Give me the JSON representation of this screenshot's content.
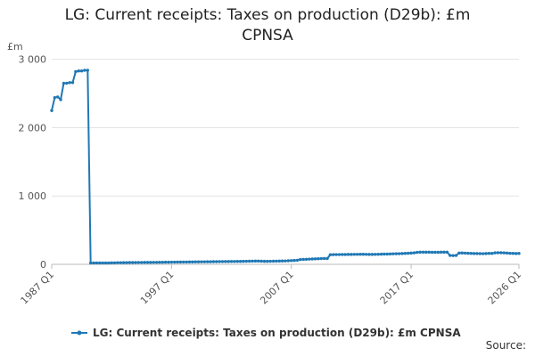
{
  "chart_data": {
    "type": "line",
    "title": "LG: Current receipts: Taxes on production (D29b): £m CPNSA",
    "y_label": "£m",
    "source": "Source:",
    "categories": [
      "1987 Q1",
      null,
      null,
      null,
      null,
      null,
      null,
      null,
      null,
      null,
      null,
      null,
      null,
      null,
      null,
      null,
      null,
      null,
      null,
      null,
      null,
      null,
      null,
      null,
      null,
      null,
      null,
      null,
      null,
      null,
      null,
      null,
      null,
      null,
      null,
      null,
      null,
      null,
      null,
      null,
      "1997 Q1",
      null,
      null,
      null,
      null,
      null,
      null,
      null,
      null,
      null,
      null,
      null,
      null,
      null,
      null,
      null,
      null,
      null,
      null,
      null,
      null,
      null,
      null,
      null,
      null,
      null,
      null,
      null,
      null,
      null,
      null,
      null,
      null,
      null,
      null,
      null,
      null,
      null,
      null,
      null,
      "2007 Q1",
      null,
      null,
      null,
      null,
      null,
      null,
      null,
      null,
      null,
      null,
      null,
      null,
      null,
      null,
      null,
      null,
      null,
      null,
      null,
      null,
      null,
      null,
      null,
      null,
      null,
      null,
      null,
      null,
      null,
      null,
      null,
      null,
      null,
      null,
      null,
      null,
      null,
      null,
      null,
      "2017 Q1",
      null,
      null,
      null,
      null,
      null,
      null,
      null,
      null,
      null,
      null,
      null,
      null,
      null,
      null,
      null,
      null,
      null,
      null,
      null,
      null,
      null,
      null,
      null,
      null,
      null,
      null,
      null,
      null,
      null,
      null,
      null,
      null,
      null,
      null,
      null,
      "2026 Q1"
    ],
    "series": [
      {
        "name": "LG: Current receipts: Taxes on production (D29b): £m CPNSA",
        "color": "#2078b4",
        "values": [
          2250,
          2440,
          2450,
          2410,
          2650,
          2650,
          2660,
          2660,
          2820,
          2830,
          2830,
          2840,
          2840,
          20,
          20,
          20,
          20,
          20,
          20,
          20,
          22,
          22,
          24,
          24,
          25,
          25,
          26,
          26,
          26,
          27,
          27,
          28,
          28,
          28,
          29,
          29,
          30,
          30,
          31,
          31,
          32,
          32,
          33,
          33,
          34,
          34,
          35,
          35,
          36,
          36,
          37,
          37,
          38,
          38,
          39,
          39,
          40,
          40,
          41,
          41,
          42,
          42,
          43,
          43,
          44,
          45,
          46,
          47,
          48,
          48,
          46,
          44,
          44,
          45,
          46,
          47,
          48,
          49,
          50,
          52,
          55,
          57,
          60,
          70,
          72,
          74,
          76,
          78,
          80,
          82,
          84,
          85,
          85,
          140,
          142,
          143,
          143,
          144,
          144,
          145,
          145,
          146,
          146,
          147,
          147,
          146,
          145,
          145,
          146,
          147,
          148,
          150,
          150,
          152,
          154,
          155,
          156,
          158,
          160,
          162,
          165,
          168,
          175,
          178,
          178,
          178,
          178,
          176,
          176,
          176,
          178,
          178,
          178,
          130,
          128,
          130,
          165,
          166,
          164,
          162,
          160,
          158,
          158,
          157,
          156,
          158,
          160,
          160,
          168,
          170,
          170,
          168,
          165,
          162,
          160,
          158,
          160
        ]
      }
    ],
    "ylim": [
      0,
      3100
    ],
    "yticks": [
      0,
      {
        "value": 1000,
        "label": "1 000"
      },
      {
        "value": 2000,
        "label": "2 000"
      },
      {
        "value": 3000,
        "label": "3 000"
      }
    ],
    "grid": true
  }
}
